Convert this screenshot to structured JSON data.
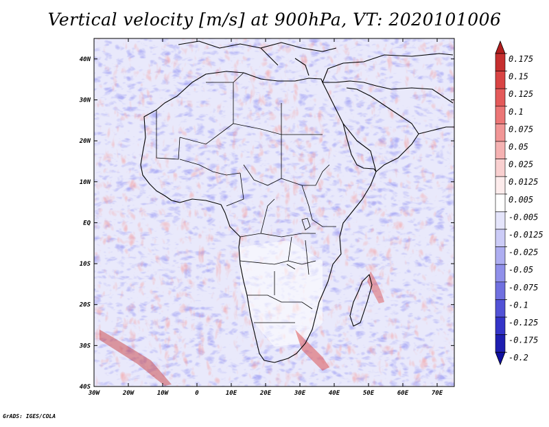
{
  "title": "Vertical velocity [m/s] at 900hPa, VT: 2020101006",
  "footer": "GrADS: IGES/COLA",
  "chart_data": {
    "type": "heatmap",
    "variable": "Vertical velocity",
    "units": "m/s",
    "level": "900hPa",
    "valid_time": "2020101006",
    "lon_range": [
      -30,
      75
    ],
    "lat_range": [
      -40,
      45
    ],
    "x_ticks": [
      "30W",
      "20W",
      "10W",
      "0",
      "10E",
      "20E",
      "30E",
      "40E",
      "50E",
      "60E",
      "70E"
    ],
    "y_ticks": [
      "40N",
      "30N",
      "20N",
      "10N",
      "EQ",
      "10S",
      "20S",
      "30S",
      "40S"
    ],
    "colorbar": {
      "labels": [
        "0.175",
        "0.15",
        "0.125",
        "0.1",
        "0.075",
        "0.05",
        "0.025",
        "0.0125",
        "0.005",
        "-0.005",
        "-0.0125",
        "-0.025",
        "-0.05",
        "-0.075",
        "-0.1",
        "-0.125",
        "-0.175",
        "-0.2"
      ],
      "colors": [
        "#b11e1e",
        "#c62f2f",
        "#d94444",
        "#e45a5a",
        "#ec7676",
        "#f19696",
        "#f5b2b2",
        "#f9d0d0",
        "#fdecec",
        "#ffffff",
        "#e5e5fb",
        "#ccccf7",
        "#aeaef1",
        "#9090ea",
        "#7070e0",
        "#5252d6",
        "#3434c8",
        "#1e1eb0",
        "#1010a0"
      ]
    }
  }
}
